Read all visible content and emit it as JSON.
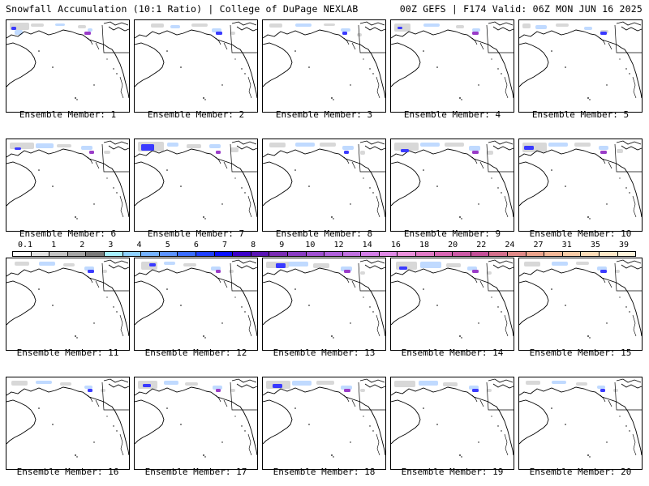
{
  "header": {
    "left": "Snowfall Accumulation (10:1 Ratio) | College of DuPage NEXLAB",
    "right": "00Z GEFS | F174 Valid: 06Z MON JUN 16 2025"
  },
  "colorbar": {
    "labels": [
      "0.1",
      "1",
      "2",
      "3",
      "4",
      "5",
      "6",
      "7",
      "8",
      "9",
      "10",
      "12",
      "14",
      "16",
      "18",
      "20",
      "22",
      "24",
      "27",
      "31",
      "35",
      "39"
    ],
    "colors": [
      "#ffffff",
      "#e2e2e2",
      "#c4c4c4",
      "#a5a5a5",
      "#7a7a7a",
      "#a7f0ff",
      "#8fd1ff",
      "#75b2ff",
      "#5c93ff",
      "#3a6cff",
      "#1f3fff",
      "#0a10ff",
      "#3c00c8",
      "#5a14b4",
      "#7a2cb4",
      "#8a3cc4",
      "#a050d2",
      "#b060dc",
      "#c070e0",
      "#d27ee6",
      "#e08ae6",
      "#ea90dc",
      "#e07ac6",
      "#d866b4",
      "#cc5aa6",
      "#c45098",
      "#d4708c",
      "#e08a88",
      "#eca48c",
      "#f4b898",
      "#f8cca8",
      "#fcdcb8",
      "#fee8c8",
      "#fff4dc"
    ]
  },
  "members": [
    {
      "caption": "Ensemble Member: 1",
      "snow": [
        [
          4,
          3,
          24,
          9
        ],
        [
          10,
          12,
          10,
          6
        ],
        [
          30,
          4,
          16,
          4
        ],
        [
          60,
          4,
          12,
          3
        ],
        [
          88,
          6,
          10,
          4
        ],
        [
          100,
          10,
          6,
          4
        ]
      ],
      "heavy": [
        [
          6,
          8,
          6,
          4
        ],
        [
          96,
          14,
          8,
          4
        ]
      ]
    },
    {
      "caption": "Ensemble Member: 2",
      "snow": [
        [
          20,
          4,
          16,
          5
        ],
        [
          44,
          6,
          12,
          4
        ],
        [
          70,
          4,
          20,
          4
        ],
        [
          95,
          10,
          12,
          5
        ],
        [
          118,
          14,
          6,
          4
        ]
      ],
      "heavy": [
        [
          100,
          14,
          8,
          4
        ]
      ]
    },
    {
      "caption": "Ensemble Member: 3",
      "snow": [
        [
          8,
          4,
          16,
          5
        ],
        [
          40,
          4,
          20,
          4
        ],
        [
          75,
          4,
          14,
          3
        ],
        [
          96,
          10,
          12,
          4
        ],
        [
          116,
          16,
          6,
          4
        ]
      ],
      "heavy": [
        [
          98,
          14,
          6,
          4
        ]
      ]
    },
    {
      "caption": "Ensemble Member: 4",
      "snow": [
        [
          4,
          4,
          20,
          10
        ],
        [
          40,
          4,
          20,
          4
        ],
        [
          80,
          6,
          10,
          4
        ],
        [
          100,
          10,
          10,
          4
        ]
      ],
      "heavy": [
        [
          8,
          8,
          6,
          3
        ],
        [
          100,
          14,
          8,
          4
        ]
      ]
    },
    {
      "caption": "Ensemble Member: 5",
      "snow": [
        [
          4,
          4,
          10,
          6
        ],
        [
          20,
          6,
          14,
          5
        ],
        [
          45,
          4,
          16,
          4
        ],
        [
          80,
          8,
          10,
          4
        ],
        [
          100,
          12,
          10,
          4
        ]
      ],
      "heavy": [
        [
          100,
          14,
          8,
          4
        ]
      ]
    },
    {
      "caption": "Ensemble Member: 6",
      "snow": [
        [
          4,
          4,
          30,
          8
        ],
        [
          36,
          5,
          22,
          6
        ],
        [
          62,
          6,
          18,
          4
        ],
        [
          92,
          8,
          14,
          5
        ],
        [
          120,
          14,
          8,
          4
        ]
      ],
      "heavy": [
        [
          10,
          10,
          8,
          3
        ],
        [
          102,
          14,
          6,
          4
        ]
      ]
    },
    {
      "caption": "Ensemble Member: 7",
      "snow": [
        [
          4,
          3,
          32,
          12
        ],
        [
          40,
          4,
          14,
          5
        ],
        [
          64,
          6,
          18,
          5
        ],
        [
          92,
          6,
          14,
          5
        ],
        [
          118,
          10,
          10,
          6
        ]
      ],
      "heavy": [
        [
          8,
          6,
          16,
          8
        ],
        [
          100,
          14,
          6,
          4
        ]
      ]
    },
    {
      "caption": "Ensemble Member: 8",
      "snow": [
        [
          8,
          4,
          20,
          6
        ],
        [
          40,
          4,
          24,
          5
        ],
        [
          70,
          4,
          20,
          5
        ],
        [
          98,
          8,
          14,
          5
        ],
        [
          120,
          14,
          6,
          5
        ]
      ],
      "heavy": [
        [
          100,
          14,
          6,
          4
        ]
      ]
    },
    {
      "caption": "Ensemble Member: 9",
      "snow": [
        [
          4,
          4,
          30,
          10
        ],
        [
          36,
          4,
          24,
          5
        ],
        [
          66,
          4,
          24,
          5
        ],
        [
          96,
          8,
          14,
          6
        ],
        [
          118,
          14,
          8,
          5
        ]
      ],
      "heavy": [
        [
          12,
          12,
          10,
          4
        ],
        [
          100,
          14,
          8,
          4
        ]
      ]
    },
    {
      "caption": "Ensemble Member: 10",
      "snow": [
        [
          4,
          4,
          30,
          12
        ],
        [
          36,
          4,
          24,
          5
        ],
        [
          68,
          4,
          20,
          5
        ],
        [
          98,
          8,
          12,
          5
        ],
        [
          120,
          12,
          8,
          5
        ]
      ],
      "heavy": [
        [
          6,
          8,
          12,
          5
        ],
        [
          100,
          14,
          8,
          4
        ]
      ]
    },
    {
      "caption": "Ensemble Member: 11",
      "snow": [
        [
          10,
          4,
          18,
          5
        ],
        [
          40,
          4,
          20,
          5
        ],
        [
          70,
          6,
          14,
          4
        ],
        [
          96,
          10,
          12,
          5
        ],
        [
          118,
          14,
          6,
          4
        ]
      ],
      "heavy": [
        [
          100,
          14,
          8,
          4
        ]
      ]
    },
    {
      "caption": "Ensemble Member: 12",
      "snow": [
        [
          8,
          4,
          20,
          10
        ],
        [
          36,
          4,
          14,
          4
        ],
        [
          60,
          6,
          16,
          4
        ],
        [
          94,
          10,
          12,
          5
        ],
        [
          116,
          14,
          6,
          4
        ]
      ],
      "heavy": [
        [
          18,
          6,
          8,
          4
        ],
        [
          100,
          14,
          6,
          4
        ]
      ]
    },
    {
      "caption": "Ensemble Member: 13",
      "snow": [
        [
          4,
          4,
          28,
          8
        ],
        [
          30,
          4,
          26,
          6
        ],
        [
          62,
          6,
          20,
          6
        ],
        [
          96,
          10,
          14,
          6
        ],
        [
          120,
          16,
          6,
          4
        ]
      ],
      "heavy": [
        [
          16,
          6,
          12,
          6
        ],
        [
          100,
          14,
          8,
          4
        ]
      ]
    },
    {
      "caption": "Ensemble Member: 14",
      "snow": [
        [
          6,
          4,
          26,
          10
        ],
        [
          36,
          4,
          26,
          8
        ],
        [
          68,
          6,
          18,
          5
        ],
        [
          94,
          10,
          12,
          5
        ],
        [
          118,
          16,
          6,
          4
        ]
      ],
      "heavy": [
        [
          10,
          10,
          10,
          4
        ],
        [
          100,
          14,
          8,
          4
        ]
      ]
    },
    {
      "caption": "Ensemble Member: 15",
      "snow": [
        [
          6,
          4,
          20,
          6
        ],
        [
          40,
          4,
          20,
          5
        ],
        [
          70,
          4,
          16,
          4
        ],
        [
          96,
          10,
          12,
          5
        ],
        [
          118,
          14,
          6,
          4
        ]
      ],
      "heavy": [
        [
          100,
          14,
          8,
          4
        ]
      ]
    },
    {
      "caption": "Ensemble Member: 16",
      "snow": [
        [
          6,
          4,
          20,
          6
        ],
        [
          36,
          4,
          20,
          4
        ],
        [
          66,
          6,
          14,
          4
        ],
        [
          96,
          10,
          10,
          4
        ],
        [
          116,
          14,
          6,
          4
        ]
      ],
      "heavy": [
        [
          100,
          14,
          6,
          4
        ]
      ]
    },
    {
      "caption": "Ensemble Member: 17",
      "snow": [
        [
          4,
          4,
          24,
          10
        ],
        [
          36,
          4,
          18,
          5
        ],
        [
          62,
          6,
          16,
          4
        ],
        [
          96,
          10,
          12,
          5
        ],
        [
          118,
          14,
          6,
          4
        ]
      ],
      "heavy": [
        [
          10,
          8,
          10,
          4
        ],
        [
          100,
          14,
          6,
          4
        ]
      ]
    },
    {
      "caption": "Ensemble Member: 18",
      "snow": [
        [
          4,
          4,
          30,
          10
        ],
        [
          36,
          4,
          24,
          6
        ],
        [
          66,
          4,
          22,
          5
        ],
        [
          96,
          10,
          14,
          5
        ],
        [
          120,
          14,
          6,
          4
        ]
      ],
      "heavy": [
        [
          12,
          8,
          12,
          5
        ],
        [
          100,
          14,
          8,
          4
        ]
      ]
    },
    {
      "caption": "Ensemble Member: 19",
      "snow": [
        [
          4,
          4,
          26,
          8
        ],
        [
          34,
          4,
          24,
          6
        ],
        [
          64,
          6,
          18,
          5
        ],
        [
          96,
          10,
          12,
          5
        ],
        [
          118,
          14,
          6,
          4
        ]
      ],
      "heavy": [
        [
          100,
          14,
          8,
          4
        ]
      ]
    },
    {
      "caption": "Ensemble Member: 20",
      "snow": [
        [
          8,
          4,
          18,
          5
        ],
        [
          40,
          4,
          18,
          4
        ],
        [
          70,
          6,
          14,
          4
        ],
        [
          96,
          10,
          10,
          4
        ],
        [
          116,
          14,
          6,
          4
        ]
      ],
      "heavy": [
        [
          100,
          14,
          6,
          4
        ]
      ]
    }
  ]
}
